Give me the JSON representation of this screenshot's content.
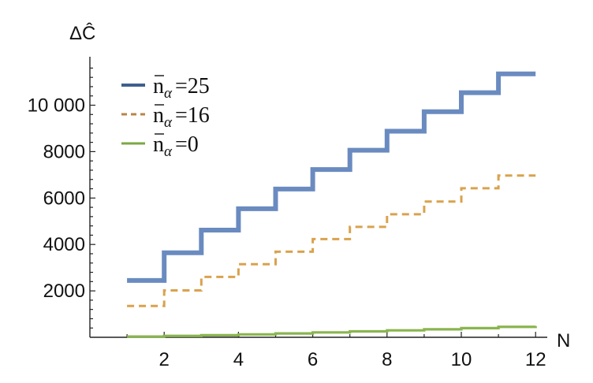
{
  "chart_data": {
    "type": "line",
    "step": true,
    "xlabel": "N",
    "ylabel": "ΔĈ",
    "xlim": [
      0,
      12
    ],
    "ylim": [
      0,
      11700
    ],
    "xticks": [
      2,
      4,
      6,
      8,
      10,
      12
    ],
    "xtick_labels": [
      "2",
      "4",
      "6",
      "8",
      "10",
      "12"
    ],
    "yticks": [
      2000,
      4000,
      6000,
      8000,
      10000
    ],
    "ytick_labels": [
      "2000",
      "4000",
      "6000",
      "8000",
      "10 000"
    ],
    "grid": false,
    "legend_position": "top-left",
    "x": [
      1,
      2,
      3,
      4,
      5,
      6,
      7,
      8,
      9,
      10,
      11,
      12
    ],
    "series": [
      {
        "name": "n̄α = 25",
        "legend": {
          "symbol": "n",
          "subscript": "α",
          "equals": "=",
          "value": "25"
        },
        "color": "#6a8bc0",
        "style": "solid-thick",
        "values": [
          2450,
          3640,
          4620,
          5540,
          6390,
          7230,
          8060,
          8880,
          9720,
          10540,
          11350,
          11350
        ]
      },
      {
        "name": "n̄α = 16",
        "legend": {
          "symbol": "n",
          "subscript": "α",
          "equals": "=",
          "value": "16"
        },
        "color": "#d9a24d",
        "style": "dashed",
        "values": [
          1350,
          2020,
          2600,
          3150,
          3690,
          4230,
          4760,
          5300,
          5850,
          6420,
          6970,
          6970
        ]
      },
      {
        "name": "n̄α = 0",
        "legend": {
          "symbol": "n",
          "subscript": "α",
          "equals": "=",
          "value": "0"
        },
        "color": "#8ab54f",
        "style": "solid",
        "values": [
          30,
          60,
          90,
          125,
          165,
          210,
          255,
          300,
          345,
          395,
          450,
          490
        ]
      }
    ]
  }
}
